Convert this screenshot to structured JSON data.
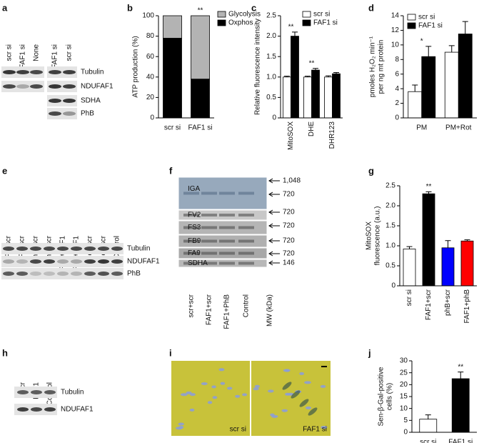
{
  "panel_labels": [
    "a",
    "b",
    "c",
    "d",
    "e",
    "f",
    "g",
    "h",
    "i",
    "j"
  ],
  "blot_a": {
    "lanes": [
      "scr si",
      "FAF1 si",
      "None",
      "FAF1 si",
      "scr si"
    ],
    "bands": [
      "Tubulin",
      "NDUFAF1",
      "SDHA",
      "PhB"
    ]
  },
  "blot_e": {
    "lanes": [
      "FAF1+scr",
      "FAF1+scr",
      "PhB+scr",
      "PhB+scr",
      "PhB+FAF1",
      "PhB+FAF1",
      "scr+scr",
      "scr+scr",
      "Control"
    ],
    "bands": [
      "Tubulin",
      "NDUFAF1",
      "PhB"
    ]
  },
  "blot_f": {
    "lanes": [
      "scr+scr",
      "FAF1+scr",
      "FAF1+PhB",
      "Control",
      "MW (kDa)"
    ],
    "bands": [
      "IGA",
      "FV2",
      "FS3",
      "FB9",
      "FA9",
      "SDHA"
    ],
    "markers": [
      "1,048",
      "720",
      "720",
      "720",
      "720",
      "720",
      "146"
    ]
  },
  "blot_h": {
    "lanes": [
      "scr",
      "FAF1",
      "Control"
    ],
    "bands": [
      "Tubulin",
      "NDUFAF1"
    ]
  },
  "image_i": {
    "labels": [
      "scr si",
      "FAF1 si"
    ]
  },
  "chart_data": [
    {
      "type": "bar",
      "stacked": true,
      "ylabel": "ATP production (%)",
      "categories": [
        "scr si",
        "FAF1 si"
      ],
      "series": [
        {
          "name": "Oxphos",
          "color": "#000000",
          "values": [
            78,
            38
          ],
          "errors": [
            2,
            6
          ]
        },
        {
          "name": "Glycolysis",
          "color": "#b3b3b3",
          "values": [
            22,
            62
          ]
        }
      ],
      "ylim": [
        0,
        100
      ],
      "yticks": [
        0,
        20,
        40,
        60,
        80,
        100
      ],
      "legend": "right",
      "annotations": [
        "**"
      ]
    },
    {
      "type": "bar",
      "ylabel": "Relative fluorescence intensity",
      "categories": [
        "MitoSOX",
        "DHE",
        "DHR123"
      ],
      "series": [
        {
          "name": "scr si",
          "color": "#ffffff",
          "values": [
            1,
            1,
            1
          ],
          "errors": [
            0.02,
            0.02,
            0.03
          ]
        },
        {
          "name": "FAF1 si",
          "color": "#000000",
          "values": [
            2.0,
            1.17,
            1.08
          ],
          "errors": [
            0.1,
            0.04,
            0.03
          ]
        }
      ],
      "ylim": [
        0,
        2.5
      ],
      "yticks": [
        0,
        0.5,
        {
          "value": 1,
          "label": "1.0"
        },
        1.5,
        {
          "value": 2,
          "label": "2.0"
        },
        2.5
      ],
      "legend": "upper right",
      "annotations": [
        "**",
        "**"
      ]
    },
    {
      "type": "bar",
      "ylabel": [
        "pmoles H₂O₂ min⁻¹",
        "per ng mt protein"
      ],
      "categories": [
        "PM",
        "PM+Rot"
      ],
      "series": [
        {
          "name": "scr si",
          "color": "#ffffff",
          "values": [
            3.6,
            9.0
          ],
          "errors": [
            0.9,
            0.9
          ]
        },
        {
          "name": "FAF1 si",
          "color": "#000000",
          "values": [
            8.4,
            11.5
          ],
          "errors": [
            1.4,
            1.7
          ]
        }
      ],
      "ylim": [
        0,
        14
      ],
      "yticks": [
        0,
        2,
        4,
        6,
        8,
        10,
        12,
        14
      ],
      "legend": "upper left",
      "annotations": [
        "*"
      ]
    },
    {
      "type": "bar",
      "ylabel": [
        "MitoSOX",
        "fluorescence (a.u.)"
      ],
      "categories": [
        "scr si",
        "FAF1+scr",
        "phB+scr",
        "FAF1+phB"
      ],
      "values": [
        0.92,
        2.3,
        0.95,
        1.12
      ],
      "errors": [
        0.06,
        0.05,
        0.18,
        0.03
      ],
      "colors": [
        "#ffffff",
        "#000000",
        "#0000ff",
        "#ff0000"
      ],
      "ylim": [
        0,
        2.5
      ],
      "yticks": [
        0,
        0.5,
        {
          "value": 1,
          "label": "1.0"
        },
        1.5,
        {
          "value": 2,
          "label": "2.0"
        },
        2.5
      ],
      "annotations": [
        "**"
      ]
    },
    {
      "type": "bar",
      "ylabel": [
        "Sen-β-Gal-positive",
        "cells (%)"
      ],
      "categories": [
        "scr si",
        "FAF1 si"
      ],
      "values": [
        5.5,
        22.5
      ],
      "errors": [
        1.8,
        2.8
      ],
      "colors": [
        "#ffffff",
        "#000000"
      ],
      "ylim": [
        0,
        30
      ],
      "yticks": [
        0,
        5,
        10,
        15,
        20,
        25,
        30
      ],
      "annotations": [
        "**"
      ]
    }
  ]
}
